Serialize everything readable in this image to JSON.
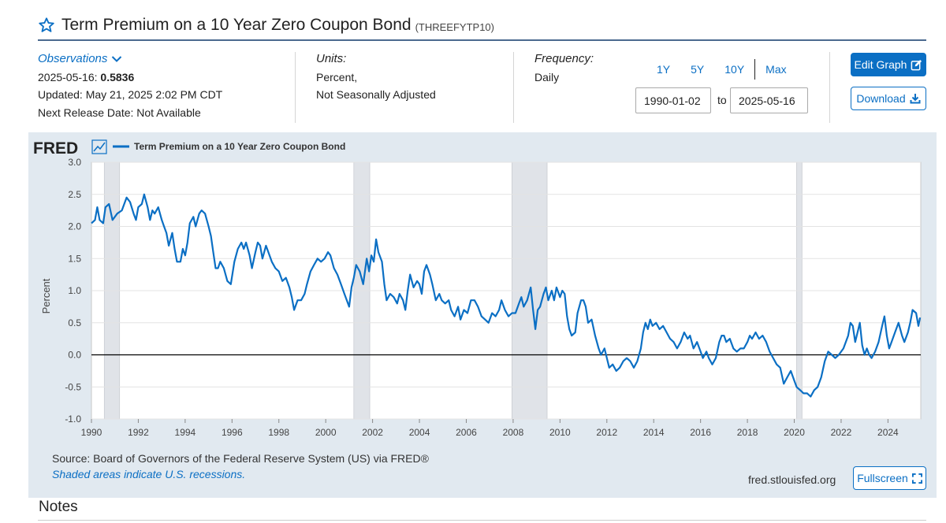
{
  "header": {
    "title": "Term Premium on a 10 Year Zero Coupon Bond",
    "series_id": "(THREEFYTP10)"
  },
  "observations": {
    "label": "Observations",
    "latest_date": "2025-05-16:",
    "latest_value": "0.5836",
    "updated": "Updated: May 21, 2025 2:02 PM CDT",
    "next_release": "Next Release Date: Not Available"
  },
  "units": {
    "label": "Units:",
    "line1": "Percent,",
    "line2": "Not Seasonally Adjusted"
  },
  "frequency": {
    "label": "Frequency:",
    "value": "Daily"
  },
  "range_buttons": [
    "1Y",
    "5Y",
    "10Y",
    "Max"
  ],
  "date_range": {
    "from": "1990-01-02",
    "to_label": "to",
    "to": "2025-05-16"
  },
  "buttons": {
    "edit_graph": "Edit Graph",
    "download": "Download",
    "fullscreen": "Fullscreen"
  },
  "graph": {
    "logo": "FRED",
    "source": "Source: Board of Governors of the Federal Reserve System (US) via FRED®",
    "shade_note": "Shaded areas indicate U.S. recessions.",
    "url": "fred.stlouisfed.org"
  },
  "notes": {
    "title": "Notes"
  },
  "colors": {
    "accent": "#0b6fc4",
    "line": "#0b6fc4",
    "panel": "#e1e9f0",
    "recession": "#e0e3e8"
  },
  "chart_data": {
    "type": "line",
    "ylabel": "Percent",
    "ylim": [
      -1.0,
      3.0
    ],
    "y_ticks": [
      "3.0",
      "2.5",
      "2.0",
      "1.5",
      "1.0",
      "0.5",
      "0.0",
      "-0.5",
      "-1.0"
    ],
    "x_ticks": [
      "1990",
      "1992",
      "1994",
      "1996",
      "1998",
      "2000",
      "2002",
      "2004",
      "2006",
      "2008",
      "2010",
      "2012",
      "2014",
      "2016",
      "2018",
      "2020",
      "2022",
      "2024"
    ],
    "xlim": [
      1990.0,
      2025.4
    ],
    "legend_position": "top-left",
    "recessions": [
      [
        1990.55,
        1991.2
      ],
      [
        2001.2,
        2001.88
      ],
      [
        2007.95,
        2009.45
      ],
      [
        2020.1,
        2020.33
      ]
    ],
    "series": [
      {
        "name": "Term Premium on a 10 Year Zero Coupon Bond",
        "points": [
          [
            1990.0,
            2.05
          ],
          [
            1990.15,
            2.1
          ],
          [
            1990.25,
            2.3
          ],
          [
            1990.35,
            2.1
          ],
          [
            1990.5,
            2.05
          ],
          [
            1990.6,
            2.3
          ],
          [
            1990.75,
            2.35
          ],
          [
            1990.9,
            2.1
          ],
          [
            1991.1,
            2.2
          ],
          [
            1991.3,
            2.25
          ],
          [
            1991.5,
            2.45
          ],
          [
            1991.65,
            2.38
          ],
          [
            1991.8,
            2.2
          ],
          [
            1991.9,
            2.1
          ],
          [
            1992.0,
            2.3
          ],
          [
            1992.15,
            2.35
          ],
          [
            1992.25,
            2.5
          ],
          [
            1992.4,
            2.3
          ],
          [
            1992.5,
            2.1
          ],
          [
            1992.6,
            2.25
          ],
          [
            1992.7,
            2.2
          ],
          [
            1992.85,
            2.3
          ],
          [
            1993.0,
            2.1
          ],
          [
            1993.1,
            2.0
          ],
          [
            1993.2,
            1.9
          ],
          [
            1993.3,
            1.7
          ],
          [
            1993.45,
            1.9
          ],
          [
            1993.55,
            1.65
          ],
          [
            1993.65,
            1.45
          ],
          [
            1993.8,
            1.45
          ],
          [
            1993.9,
            1.65
          ],
          [
            1994.0,
            1.55
          ],
          [
            1994.1,
            1.75
          ],
          [
            1994.2,
            2.05
          ],
          [
            1994.35,
            2.15
          ],
          [
            1994.45,
            2.0
          ],
          [
            1994.6,
            2.2
          ],
          [
            1994.7,
            2.25
          ],
          [
            1994.85,
            2.2
          ],
          [
            1995.0,
            2.0
          ],
          [
            1995.1,
            1.85
          ],
          [
            1995.2,
            1.6
          ],
          [
            1995.3,
            1.35
          ],
          [
            1995.4,
            1.35
          ],
          [
            1995.5,
            1.45
          ],
          [
            1995.65,
            1.35
          ],
          [
            1995.8,
            1.15
          ],
          [
            1995.95,
            1.1
          ],
          [
            1996.1,
            1.45
          ],
          [
            1996.25,
            1.65
          ],
          [
            1996.4,
            1.75
          ],
          [
            1996.5,
            1.65
          ],
          [
            1996.6,
            1.75
          ],
          [
            1996.75,
            1.55
          ],
          [
            1996.85,
            1.35
          ],
          [
            1997.0,
            1.6
          ],
          [
            1997.1,
            1.75
          ],
          [
            1997.2,
            1.7
          ],
          [
            1997.3,
            1.5
          ],
          [
            1997.45,
            1.7
          ],
          [
            1997.55,
            1.6
          ],
          [
            1997.7,
            1.45
          ],
          [
            1997.85,
            1.35
          ],
          [
            1998.0,
            1.3
          ],
          [
            1998.15,
            1.15
          ],
          [
            1998.3,
            1.2
          ],
          [
            1998.45,
            1.05
          ],
          [
            1998.55,
            0.9
          ],
          [
            1998.65,
            0.7
          ],
          [
            1998.8,
            0.85
          ],
          [
            1998.95,
            0.85
          ],
          [
            1999.1,
            0.95
          ],
          [
            1999.2,
            1.1
          ],
          [
            1999.35,
            1.3
          ],
          [
            1999.5,
            1.4
          ],
          [
            1999.65,
            1.5
          ],
          [
            1999.8,
            1.45
          ],
          [
            1999.95,
            1.5
          ],
          [
            2000.1,
            1.6
          ],
          [
            2000.2,
            1.55
          ],
          [
            2000.35,
            1.35
          ],
          [
            2000.5,
            1.25
          ],
          [
            2000.65,
            1.1
          ],
          [
            2000.8,
            0.95
          ],
          [
            2000.9,
            0.85
          ],
          [
            2001.0,
            0.75
          ],
          [
            2001.1,
            1.05
          ],
          [
            2001.2,
            1.2
          ],
          [
            2001.3,
            1.4
          ],
          [
            2001.45,
            1.3
          ],
          [
            2001.6,
            1.1
          ],
          [
            2001.75,
            1.5
          ],
          [
            2001.85,
            1.3
          ],
          [
            2001.95,
            1.55
          ],
          [
            2002.05,
            1.45
          ],
          [
            2002.15,
            1.8
          ],
          [
            2002.25,
            1.6
          ],
          [
            2002.4,
            1.45
          ],
          [
            2002.5,
            1.1
          ],
          [
            2002.6,
            0.85
          ],
          [
            2002.75,
            0.95
          ],
          [
            2002.9,
            0.9
          ],
          [
            2003.05,
            0.8
          ],
          [
            2003.15,
            0.95
          ],
          [
            2003.3,
            0.85
          ],
          [
            2003.4,
            0.7
          ],
          [
            2003.5,
            1.0
          ],
          [
            2003.6,
            1.25
          ],
          [
            2003.75,
            1.05
          ],
          [
            2003.9,
            1.15
          ],
          [
            2004.0,
            1.1
          ],
          [
            2004.1,
            0.95
          ],
          [
            2004.2,
            1.3
          ],
          [
            2004.3,
            1.4
          ],
          [
            2004.45,
            1.25
          ],
          [
            2004.55,
            1.1
          ],
          [
            2004.7,
            0.85
          ],
          [
            2004.85,
            0.95
          ],
          [
            2004.95,
            0.85
          ],
          [
            2005.1,
            0.8
          ],
          [
            2005.25,
            0.85
          ],
          [
            2005.35,
            0.7
          ],
          [
            2005.5,
            0.6
          ],
          [
            2005.65,
            0.75
          ],
          [
            2005.75,
            0.55
          ],
          [
            2005.9,
            0.7
          ],
          [
            2006.05,
            0.65
          ],
          [
            2006.2,
            0.85
          ],
          [
            2006.35,
            0.85
          ],
          [
            2006.5,
            0.75
          ],
          [
            2006.65,
            0.6
          ],
          [
            2006.8,
            0.55
          ],
          [
            2006.95,
            0.5
          ],
          [
            2007.1,
            0.65
          ],
          [
            2007.25,
            0.6
          ],
          [
            2007.4,
            0.7
          ],
          [
            2007.5,
            0.85
          ],
          [
            2007.65,
            0.7
          ],
          [
            2007.8,
            0.6
          ],
          [
            2007.95,
            0.65
          ],
          [
            2008.1,
            0.65
          ],
          [
            2008.25,
            0.8
          ],
          [
            2008.35,
            0.9
          ],
          [
            2008.45,
            0.75
          ],
          [
            2008.6,
            0.85
          ],
          [
            2008.75,
            1.05
          ],
          [
            2008.85,
            0.7
          ],
          [
            2008.95,
            0.4
          ],
          [
            2009.05,
            0.7
          ],
          [
            2009.15,
            0.75
          ],
          [
            2009.3,
            0.95
          ],
          [
            2009.4,
            1.05
          ],
          [
            2009.5,
            0.85
          ],
          [
            2009.65,
            1.0
          ],
          [
            2009.75,
            0.85
          ],
          [
            2009.85,
            1.05
          ],
          [
            2010.0,
            0.9
          ],
          [
            2010.1,
            1.0
          ],
          [
            2010.2,
            0.95
          ],
          [
            2010.3,
            0.6
          ],
          [
            2010.4,
            0.4
          ],
          [
            2010.5,
            0.3
          ],
          [
            2010.65,
            0.35
          ],
          [
            2010.75,
            0.65
          ],
          [
            2010.9,
            0.85
          ],
          [
            2011.0,
            0.85
          ],
          [
            2011.1,
            0.75
          ],
          [
            2011.2,
            0.5
          ],
          [
            2011.35,
            0.55
          ],
          [
            2011.5,
            0.3
          ],
          [
            2011.65,
            0.1
          ],
          [
            2011.75,
            0.0
          ],
          [
            2011.9,
            0.1
          ],
          [
            2012.0,
            -0.05
          ],
          [
            2012.1,
            -0.2
          ],
          [
            2012.25,
            -0.15
          ],
          [
            2012.4,
            -0.25
          ],
          [
            2012.55,
            -0.2
          ],
          [
            2012.7,
            -0.1
          ],
          [
            2012.85,
            -0.05
          ],
          [
            2013.0,
            -0.1
          ],
          [
            2013.15,
            -0.2
          ],
          [
            2013.3,
            -0.1
          ],
          [
            2013.45,
            0.1
          ],
          [
            2013.55,
            0.35
          ],
          [
            2013.65,
            0.5
          ],
          [
            2013.75,
            0.4
          ],
          [
            2013.85,
            0.55
          ],
          [
            2013.95,
            0.45
          ],
          [
            2014.1,
            0.5
          ],
          [
            2014.25,
            0.4
          ],
          [
            2014.4,
            0.45
          ],
          [
            2014.55,
            0.35
          ],
          [
            2014.7,
            0.25
          ],
          [
            2014.85,
            0.2
          ],
          [
            2015.0,
            0.1
          ],
          [
            2015.15,
            0.2
          ],
          [
            2015.3,
            0.35
          ],
          [
            2015.45,
            0.25
          ],
          [
            2015.55,
            0.3
          ],
          [
            2015.7,
            0.1
          ],
          [
            2015.85,
            0.2
          ],
          [
            2016.0,
            0.05
          ],
          [
            2016.1,
            -0.05
          ],
          [
            2016.25,
            0.05
          ],
          [
            2016.35,
            -0.05
          ],
          [
            2016.5,
            -0.15
          ],
          [
            2016.65,
            -0.05
          ],
          [
            2016.8,
            0.2
          ],
          [
            2016.9,
            0.3
          ],
          [
            2017.0,
            0.3
          ],
          [
            2017.1,
            0.2
          ],
          [
            2017.25,
            0.25
          ],
          [
            2017.4,
            0.1
          ],
          [
            2017.55,
            0.05
          ],
          [
            2017.7,
            0.1
          ],
          [
            2017.85,
            0.1
          ],
          [
            2018.0,
            0.2
          ],
          [
            2018.1,
            0.3
          ],
          [
            2018.2,
            0.25
          ],
          [
            2018.35,
            0.35
          ],
          [
            2018.5,
            0.25
          ],
          [
            2018.65,
            0.3
          ],
          [
            2018.8,
            0.2
          ],
          [
            2018.95,
            0.05
          ],
          [
            2019.1,
            -0.05
          ],
          [
            2019.25,
            -0.15
          ],
          [
            2019.4,
            -0.2
          ],
          [
            2019.55,
            -0.45
          ],
          [
            2019.7,
            -0.35
          ],
          [
            2019.85,
            -0.25
          ],
          [
            2020.0,
            -0.4
          ],
          [
            2020.1,
            -0.5
          ],
          [
            2020.25,
            -0.55
          ],
          [
            2020.4,
            -0.6
          ],
          [
            2020.55,
            -0.6
          ],
          [
            2020.7,
            -0.65
          ],
          [
            2020.85,
            -0.55
          ],
          [
            2021.0,
            -0.5
          ],
          [
            2021.15,
            -0.35
          ],
          [
            2021.3,
            -0.1
          ],
          [
            2021.45,
            0.05
          ],
          [
            2021.6,
            0.0
          ],
          [
            2021.75,
            -0.05
          ],
          [
            2021.9,
            0.0
          ],
          [
            2022.0,
            0.05
          ],
          [
            2022.1,
            0.1
          ],
          [
            2022.2,
            0.2
          ],
          [
            2022.3,
            0.3
          ],
          [
            2022.4,
            0.5
          ],
          [
            2022.5,
            0.45
          ],
          [
            2022.6,
            0.2
          ],
          [
            2022.7,
            0.35
          ],
          [
            2022.8,
            0.5
          ],
          [
            2022.9,
            0.15
          ],
          [
            2023.0,
            0.0
          ],
          [
            2023.1,
            0.1
          ],
          [
            2023.2,
            0.0
          ],
          [
            2023.3,
            -0.05
          ],
          [
            2023.45,
            0.05
          ],
          [
            2023.6,
            0.2
          ],
          [
            2023.75,
            0.45
          ],
          [
            2023.85,
            0.6
          ],
          [
            2023.95,
            0.3
          ],
          [
            2024.05,
            0.1
          ],
          [
            2024.15,
            0.2
          ],
          [
            2024.3,
            0.35
          ],
          [
            2024.45,
            0.5
          ],
          [
            2024.6,
            0.3
          ],
          [
            2024.7,
            0.2
          ],
          [
            2024.85,
            0.35
          ],
          [
            2024.95,
            0.5
          ],
          [
            2025.05,
            0.7
          ],
          [
            2025.2,
            0.65
          ],
          [
            2025.3,
            0.45
          ],
          [
            2025.37,
            0.58
          ]
        ]
      }
    ]
  }
}
